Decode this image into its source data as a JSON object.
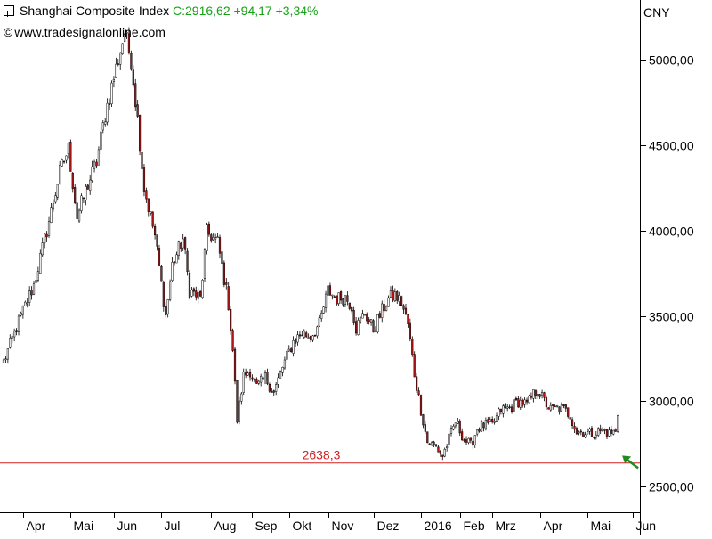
{
  "header": {
    "index_name": "Shanghai Composite Index",
    "close_text": "C:2916,62 +94,17 +3,34%"
  },
  "source": {
    "copyright": "©",
    "site": "www.tradesignalonline.com"
  },
  "colors": {
    "up_candle": "#ffffff",
    "down_candle": "#b01818",
    "support_line": "#d42020",
    "quote_green": "#16a116",
    "arrow": "#1e8c1e"
  },
  "chart_data": {
    "type": "candlestick",
    "currency": "CNY",
    "ylim": [
      2350,
      5350
    ],
    "y_ticks": [
      {
        "value": 5000,
        "label": "5000,00"
      },
      {
        "value": 4500,
        "label": "4500,00"
      },
      {
        "value": 4000,
        "label": "4000,00"
      },
      {
        "value": 3500,
        "label": "3500,00"
      },
      {
        "value": 3000,
        "label": "3000,00"
      },
      {
        "value": 2500,
        "label": "2500,00"
      }
    ],
    "x_ticks": [
      {
        "label": "Apr",
        "index": 9
      },
      {
        "label": "Mai",
        "index": 31
      },
      {
        "label": "Jun",
        "index": 51
      },
      {
        "label": "Jul",
        "index": 73
      },
      {
        "label": "Aug",
        "index": 96
      },
      {
        "label": "Sep",
        "index": 115
      },
      {
        "label": "Okt",
        "index": 132
      },
      {
        "label": "Nov",
        "index": 150
      },
      {
        "label": "Dez",
        "index": 171
      },
      {
        "label": "2016",
        "index": 193
      },
      {
        "label": "Feb",
        "index": 211
      },
      {
        "label": "Mrz",
        "index": 226
      },
      {
        "label": "Apr",
        "index": 248
      },
      {
        "label": "Mai",
        "index": 270
      },
      {
        "label": "Jun",
        "index": 291
      }
    ],
    "support": {
      "value": 2638.3,
      "label": "2638,3"
    },
    "last_close": 2916.62,
    "change": 94.17,
    "change_pct": 3.34,
    "anchors": [
      [
        0,
        3230
      ],
      [
        8,
        3500
      ],
      [
        14,
        3680
      ],
      [
        20,
        4000
      ],
      [
        26,
        4340
      ],
      [
        30,
        4480
      ],
      [
        34,
        4080
      ],
      [
        39,
        4270
      ],
      [
        43,
        4400
      ],
      [
        47,
        4680
      ],
      [
        52,
        4950
      ],
      [
        56,
        5160
      ],
      [
        59,
        5000
      ],
      [
        62,
        4650
      ],
      [
        65,
        4250
      ],
      [
        70,
        3970
      ],
      [
        75,
        3500
      ],
      [
        78,
        3800
      ],
      [
        83,
        3950
      ],
      [
        86,
        3650
      ],
      [
        91,
        3600
      ],
      [
        94,
        3990
      ],
      [
        99,
        3930
      ],
      [
        102,
        3720
      ],
      [
        104,
        3570
      ],
      [
        106,
        3300
      ],
      [
        108,
        2890
      ],
      [
        111,
        3150
      ],
      [
        114,
        3180
      ],
      [
        117,
        3080
      ],
      [
        121,
        3140
      ],
      [
        125,
        3050
      ],
      [
        129,
        3200
      ],
      [
        134,
        3350
      ],
      [
        138,
        3400
      ],
      [
        142,
        3380
      ],
      [
        146,
        3450
      ],
      [
        150,
        3650
      ],
      [
        154,
        3600
      ],
      [
        158,
        3610
      ],
      [
        161,
        3560
      ],
      [
        163,
        3430
      ],
      [
        167,
        3520
      ],
      [
        171,
        3420
      ],
      [
        175,
        3530
      ],
      [
        178,
        3600
      ],
      [
        181,
        3620
      ],
      [
        184,
        3580
      ],
      [
        187,
        3450
      ],
      [
        190,
        3160
      ],
      [
        193,
        2950
      ],
      [
        196,
        2760
      ],
      [
        200,
        2730
      ],
      [
        203,
        2680
      ],
      [
        206,
        2780
      ],
      [
        209,
        2880
      ],
      [
        213,
        2780
      ],
      [
        216,
        2740
      ],
      [
        219,
        2840
      ],
      [
        222,
        2860
      ],
      [
        226,
        2860
      ],
      [
        230,
        2950
      ],
      [
        234,
        2960
      ],
      [
        238,
        3000
      ],
      [
        242,
        2980
      ],
      [
        245,
        3040
      ],
      [
        247,
        3070
      ],
      [
        250,
        3000
      ],
      [
        253,
        2950
      ],
      [
        256,
        2960
      ],
      [
        259,
        2950
      ],
      [
        262,
        2920
      ],
      [
        265,
        2820
      ],
      [
        268,
        2820
      ],
      [
        271,
        2810
      ],
      [
        274,
        2820
      ],
      [
        277,
        2830
      ],
      [
        280,
        2810
      ],
      [
        282,
        2820
      ],
      [
        284,
        2916.62
      ]
    ]
  }
}
